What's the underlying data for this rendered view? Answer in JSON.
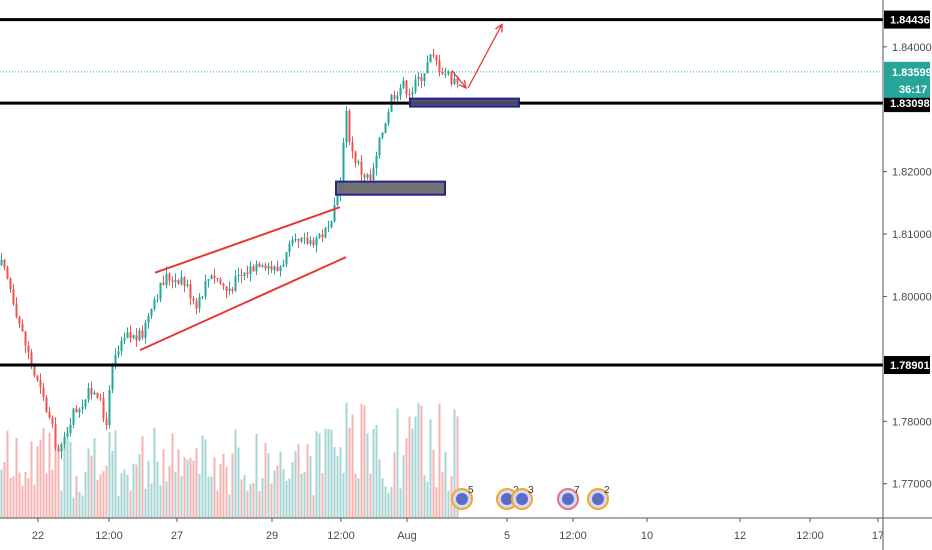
{
  "chart_data": {
    "type": "candlestick",
    "instrument_note": "",
    "ylim": [
      1.7645,
      1.8475
    ],
    "y_ticks": [
      "1.84000",
      "1.82000",
      "1.81000",
      "1.80000",
      "1.78000",
      "1.77000"
    ],
    "x_ticks": [
      "22",
      "12:00",
      "27",
      "29",
      "12:00",
      "Aug",
      "5",
      "12:00",
      "10",
      "12",
      "12:00",
      "17"
    ],
    "horizontal_levels": [
      {
        "price": 1.84436,
        "label": "1.84436",
        "style": "black-thick"
      },
      {
        "price": 1.83098,
        "label": "1.83098",
        "style": "black-thick"
      },
      {
        "price": 1.78901,
        "label": "1.78901",
        "style": "black-thick"
      }
    ],
    "current_price": {
      "price": 1.83599,
      "label": "1.83599",
      "countdown": "36:17",
      "color": "#26a69a"
    },
    "zones": [
      {
        "label": "demand-zone-upper",
        "price_top": 1.8317,
        "price_bottom": 1.8308,
        "fill": "#4a4a6a",
        "border": "#1a1a8a"
      },
      {
        "label": "demand-zone-lower",
        "price_top": 1.8184,
        "price_bottom": 1.8163,
        "fill": "#6b6b6b",
        "border": "#1a1a8a"
      }
    ],
    "channel_lines": [
      {
        "from": {
          "t": 155,
          "p": 1.8038
        },
        "to": {
          "t": 340,
          "p": 1.8143
        }
      },
      {
        "from": {
          "t": 140,
          "p": 1.7914
        },
        "to": {
          "t": 346,
          "p": 1.8063
        }
      }
    ],
    "projection_arrow": [
      {
        "t": 468,
        "p": 1.8334
      },
      {
        "t": 502,
        "p": 1.8436
      }
    ],
    "pullback_arrow": [
      {
        "t": 452,
        "p": 1.8362
      },
      {
        "t": 466,
        "p": 1.8334
      }
    ],
    "anchors": [
      {
        "t": 0,
        "p": 1.805
      },
      {
        "t": 10,
        "p": 1.801
      },
      {
        "t": 20,
        "p": 1.7945
      },
      {
        "t": 32,
        "p": 1.788
      },
      {
        "t": 45,
        "p": 1.782
      },
      {
        "t": 58,
        "p": 1.7745
      },
      {
        "t": 70,
        "p": 1.781
      },
      {
        "t": 85,
        "p": 1.784
      },
      {
        "t": 95,
        "p": 1.7855
      },
      {
        "t": 104,
        "p": 1.779
      },
      {
        "t": 112,
        "p": 1.7895
      },
      {
        "t": 125,
        "p": 1.7935
      },
      {
        "t": 140,
        "p": 1.7935
      },
      {
        "t": 150,
        "p": 1.799
      },
      {
        "t": 165,
        "p": 1.803
      },
      {
        "t": 180,
        "p": 1.803
      },
      {
        "t": 195,
        "p": 1.799
      },
      {
        "t": 210,
        "p": 1.804
      },
      {
        "t": 225,
        "p": 1.801
      },
      {
        "t": 245,
        "p": 1.804
      },
      {
        "t": 260,
        "p": 1.806
      },
      {
        "t": 275,
        "p": 1.804
      },
      {
        "t": 290,
        "p": 1.808
      },
      {
        "t": 310,
        "p": 1.809
      },
      {
        "t": 330,
        "p": 1.811
      },
      {
        "t": 338,
        "p": 1.818
      },
      {
        "t": 345,
        "p": 1.829
      },
      {
        "t": 350,
        "p": 1.8235
      },
      {
        "t": 360,
        "p": 1.82
      },
      {
        "t": 370,
        "p": 1.8185
      },
      {
        "t": 380,
        "p": 1.826
      },
      {
        "t": 390,
        "p": 1.832
      },
      {
        "t": 400,
        "p": 1.834
      },
      {
        "t": 410,
        "p": 1.833
      },
      {
        "t": 420,
        "p": 1.8355
      },
      {
        "t": 430,
        "p": 1.8385
      },
      {
        "t": 440,
        "p": 1.8365
      },
      {
        "t": 450,
        "p": 1.835
      },
      {
        "t": 458,
        "p": 1.8345
      }
    ],
    "event_markers": [
      {
        "count": "5"
      },
      {
        "count": "2"
      },
      {
        "count": "3"
      },
      {
        "count": "7"
      },
      {
        "count": "2"
      }
    ],
    "colors": {
      "up": "#26a69a",
      "down": "#ef5350",
      "volume_up": "#a5d6d3",
      "volume_down": "#f6b3b1",
      "channel": "#e53935",
      "arrow": "#e53935"
    }
  }
}
